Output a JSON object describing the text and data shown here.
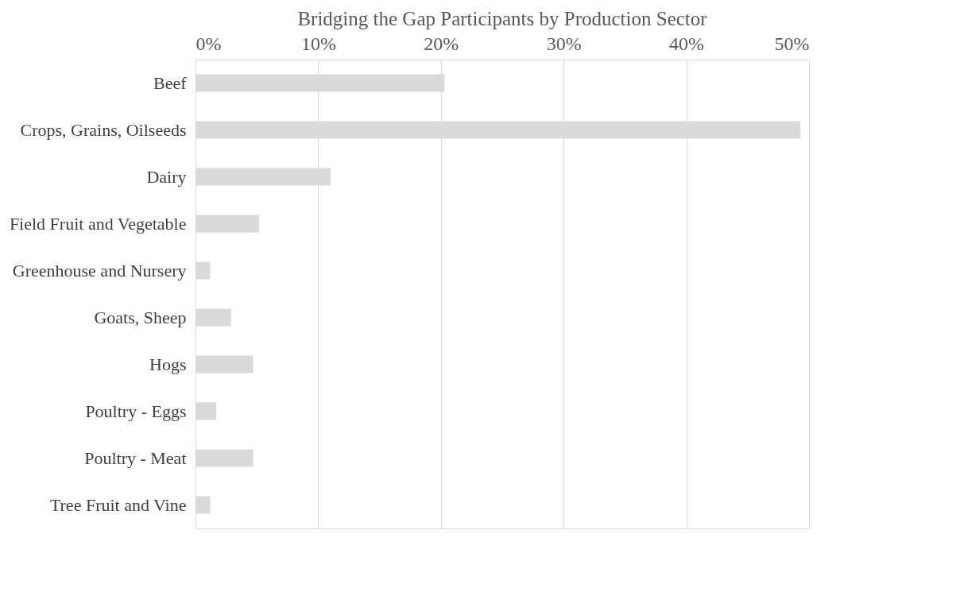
{
  "chart_data": {
    "type": "bar",
    "orientation": "horizontal",
    "title": "Bridging the Gap Participants by Production Sector",
    "categories": [
      "Beef",
      "Crops, Grains, Oilseeds",
      "Dairy",
      "Field Fruit and Vegetable",
      "Greenhouse and Nursery",
      "Goats, Sheep",
      "Hogs",
      "Poultry - Eggs",
      "Poultry - Meat",
      "Tree Fruit and Vine"
    ],
    "values": [
      20.3,
      49.3,
      11.0,
      5.2,
      1.2,
      2.9,
      4.7,
      1.7,
      4.7,
      1.2
    ],
    "color": "#d9d9d9",
    "xlim": [
      0,
      50
    ],
    "xticks": [
      {
        "value": 0,
        "label": "0%"
      },
      {
        "value": 10,
        "label": "10%"
      },
      {
        "value": 20,
        "label": "20%"
      },
      {
        "value": 30,
        "label": "30%"
      },
      {
        "value": 40,
        "label": "40%"
      },
      {
        "value": 50,
        "label": "50%"
      }
    ],
    "grid": "x"
  }
}
